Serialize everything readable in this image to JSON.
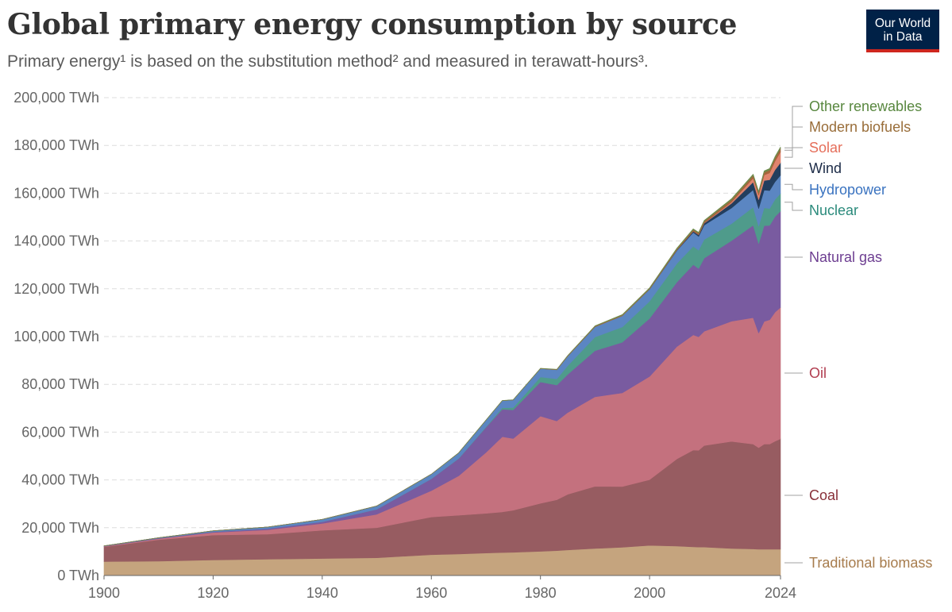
{
  "header": {
    "title": "Global primary energy consumption by source",
    "subtitle": "Primary energy¹ is based on the substitution method² and measured in terawatt-hours³.",
    "logo_line1": "Our World",
    "logo_line2": "in Data"
  },
  "chart_data": {
    "type": "area",
    "stacked": true,
    "title": "Global primary energy consumption by source",
    "ylabel": "",
    "unit": "TWh",
    "ylim": [
      0,
      200000
    ],
    "xlim": [
      1900,
      2024
    ],
    "y_ticks": [
      "0 TWh",
      "20,000 TWh",
      "40,000 TWh",
      "60,000 TWh",
      "80,000 TWh",
      "100,000 TWh",
      "120,000 TWh",
      "140,000 TWh",
      "160,000 TWh",
      "180,000 TWh",
      "200,000 TWh"
    ],
    "y_tick_values": [
      0,
      20000,
      40000,
      60000,
      80000,
      100000,
      120000,
      140000,
      160000,
      180000,
      200000
    ],
    "x_ticks": [
      "1900",
      "1920",
      "1940",
      "1960",
      "1980",
      "2000",
      "2024"
    ],
    "x_tick_values": [
      1900,
      1920,
      1940,
      1960,
      1980,
      2000,
      2024
    ],
    "grid": true,
    "x": [
      1900,
      1910,
      1920,
      1930,
      1940,
      1950,
      1960,
      1965,
      1970,
      1973,
      1975,
      1980,
      1983,
      1985,
      1990,
      1995,
      2000,
      2005,
      2008,
      2009,
      2010,
      2015,
      2019,
      2020,
      2021,
      2022,
      2023,
      2024
    ],
    "series": [
      {
        "name": "Traditional biomass",
        "color": "#c5a47e",
        "label_color": "#a77c4d",
        "values": [
          5800,
          6000,
          6500,
          6800,
          7100,
          7400,
          8700,
          9000,
          9400,
          9600,
          9700,
          10100,
          10400,
          10700,
          11300,
          11800,
          12600,
          12300,
          12000,
          11900,
          11900,
          11300,
          11100,
          11000,
          11000,
          11000,
          11000,
          11000
        ]
      },
      {
        "name": "Coal",
        "color": "#975c61",
        "label_color": "#883039",
        "values": [
          6200,
          9000,
          10400,
          10500,
          11800,
          12600,
          15800,
          16200,
          16600,
          17000,
          17600,
          20100,
          21300,
          23300,
          26000,
          25400,
          27500,
          36500,
          40500,
          40500,
          42500,
          44800,
          43900,
          42500,
          44000,
          44000,
          45200,
          46200
        ]
      },
      {
        "name": "Oil",
        "color": "#c4717e",
        "label_color": "#b13d50",
        "values": [
          200,
          400,
          1100,
          1800,
          2900,
          5600,
          11000,
          16500,
          25500,
          31500,
          30000,
          36500,
          33000,
          34200,
          37500,
          39200,
          43200,
          47000,
          48200,
          47500,
          47800,
          50300,
          52900,
          48000,
          51300,
          52000,
          54000,
          55000
        ]
      },
      {
        "name": "Natural gas",
        "color": "#795ba0",
        "label_color": "#6d3e91",
        "values": [
          100,
          200,
          300,
          500,
          700,
          2100,
          5000,
          7200,
          10500,
          11500,
          12000,
          14300,
          15000,
          16000,
          19300,
          21200,
          24300,
          27000,
          29400,
          28600,
          30600,
          33700,
          38700,
          37400,
          40100,
          39500,
          40000,
          40300
        ]
      },
      {
        "name": "Nuclear",
        "color": "#4f9b8b",
        "label_color": "#2a8a7b",
        "values": [
          0,
          0,
          0,
          0,
          0,
          0,
          10,
          100,
          200,
          600,
          1000,
          2100,
          2600,
          3600,
          5700,
          6400,
          7200,
          7800,
          7700,
          7600,
          7800,
          7100,
          7600,
          7300,
          7500,
          7100,
          7200,
          7400
        ]
      },
      {
        "name": "Hydropower",
        "color": "#5b86c2",
        "label_color": "#3a73c0",
        "values": [
          100,
          200,
          400,
          700,
          1000,
          1400,
          1900,
          2300,
          2800,
          3000,
          3200,
          3500,
          3800,
          4000,
          4300,
          4700,
          5000,
          5400,
          5800,
          5800,
          6000,
          6600,
          7200,
          7400,
          7400,
          7500,
          7400,
          7600
        ]
      },
      {
        "name": "Wind",
        "color": "#233e5e",
        "label_color": "#1c2b47",
        "values": [
          0,
          0,
          0,
          0,
          0,
          0,
          0,
          0,
          0,
          0,
          0,
          0,
          0,
          0,
          10,
          20,
          80,
          250,
          500,
          650,
          820,
          1900,
          3300,
          3700,
          4000,
          4500,
          5000,
          5300
        ]
      },
      {
        "name": "Solar",
        "color": "#e0846e",
        "label_color": "#e56e5a",
        "values": [
          0,
          0,
          0,
          0,
          0,
          0,
          0,
          0,
          0,
          0,
          0,
          0,
          0,
          0,
          0,
          0,
          0,
          10,
          30,
          50,
          80,
          580,
          1600,
          1900,
          2300,
          2900,
          3600,
          4500
        ]
      },
      {
        "name": "Modern biofuels",
        "color": "#a7653c",
        "label_color": "#996d39",
        "values": [
          0,
          0,
          0,
          0,
          0,
          0,
          0,
          0,
          0,
          0,
          0,
          50,
          100,
          150,
          200,
          220,
          230,
          400,
          600,
          650,
          700,
          900,
          1100,
          1000,
          1100,
          1200,
          1300,
          1350
        ]
      },
      {
        "name": "Other renewables",
        "color": "#6f8b4c",
        "label_color": "#58873f",
        "values": [
          0,
          0,
          0,
          0,
          0,
          0,
          10,
          20,
          40,
          50,
          60,
          100,
          120,
          150,
          200,
          250,
          300,
          350,
          380,
          400,
          420,
          500,
          580,
          600,
          620,
          640,
          660,
          680
        ]
      }
    ],
    "legend": "right, inline labels at end of each area"
  }
}
